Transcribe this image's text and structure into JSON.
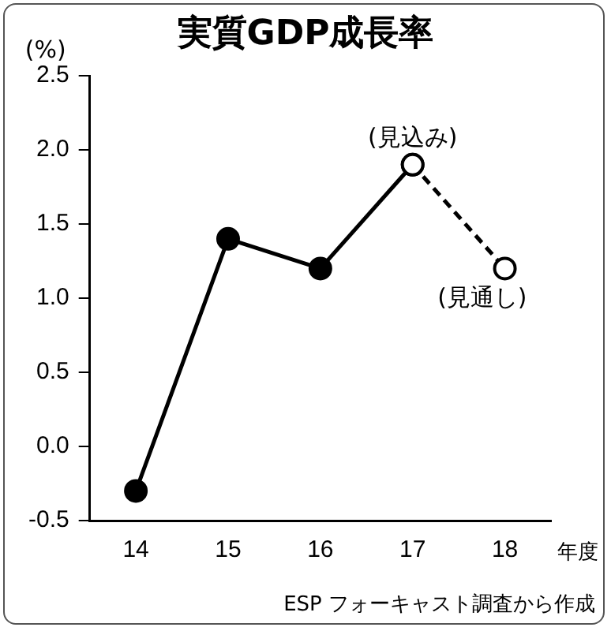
{
  "chart_data": {
    "type": "line",
    "title": "実質GDP成長率",
    "ylabel": "(%)",
    "xlabel": "年度",
    "categories": [
      "14",
      "15",
      "16",
      "17",
      "18"
    ],
    "series": [
      {
        "color": "#000000",
        "values": [
          -0.3,
          1.4,
          1.2,
          1.9,
          null
        ],
        "line_style": "solid"
      },
      {
        "color": "#000000",
        "values": [
          null,
          null,
          null,
          1.9,
          1.2
        ],
        "line_style": "dashed"
      }
    ],
    "ylim": [
      -0.5,
      2.5
    ],
    "yticks": [
      {
        "value": -0.5,
        "label": "-0.5"
      },
      {
        "value": 0,
        "label": "0.0"
      },
      {
        "value": 0.5,
        "label": "0.5"
      },
      {
        "value": 1,
        "label": "1.0"
      },
      {
        "value": 1.5,
        "label": "1.5"
      },
      {
        "value": 2,
        "label": "2.0"
      },
      {
        "value": 2.5,
        "label": "2.5"
      }
    ],
    "marker": "circle",
    "grid": false,
    "legend": false,
    "annotations": [
      {
        "text": "(見込み)",
        "x": "17",
        "y": 1.9
      },
      {
        "text": "(見通し)",
        "x": "18",
        "y": 1.2
      },
      "ESP フォーキャスト調査から作成"
    ]
  }
}
